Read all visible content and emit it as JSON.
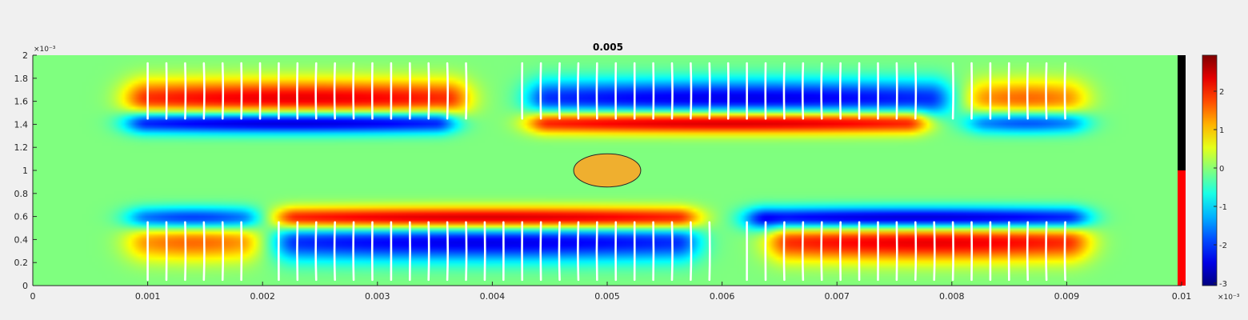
{
  "chart_data": {
    "type": "heatmap",
    "title": "0.005",
    "xlabel": "",
    "ylabel": "",
    "xlim": [
      0,
      0.01
    ],
    "ylim": [
      0,
      0.002
    ],
    "x_ticks": [
      0,
      0.001,
      0.002,
      0.003,
      0.004,
      0.005,
      0.006,
      0.007,
      0.008,
      0.009,
      0.01
    ],
    "x_tick_labels": [
      "0",
      "0.001",
      "0.002",
      "0.003",
      "0.004",
      "0.005",
      "0.006",
      "0.007",
      "0.008",
      "0.009",
      "0.01"
    ],
    "y_tick_labels": [
      "0",
      "0.2",
      "0.4",
      "0.6",
      "0.8",
      "1",
      "1.2",
      "1.4",
      "1.6",
      "1.8",
      "2"
    ],
    "y_exponent_label": "×10⁻³",
    "colorbar": {
      "colormap": "jet",
      "range": [
        -3,
        3
      ],
      "tick_labels": [
        "-3",
        "-2",
        "-1",
        "0",
        "1",
        "2"
      ],
      "exponent_label": "×10⁻³"
    },
    "lobes": [
      {
        "x0": 0.001,
        "x1": 0.0036,
        "yc": 0.00162,
        "amp": 0.8,
        "wid": 0.00012
      },
      {
        "x0": 0.001,
        "x1": 0.0035,
        "yc": 0.00142,
        "amp": -1.0,
        "wid": 7e-05
      },
      {
        "x0": 0.0045,
        "x1": 0.0078,
        "yc": 0.00162,
        "amp": -0.8,
        "wid": 0.00012
      },
      {
        "x0": 0.0045,
        "x1": 0.0076,
        "yc": 0.00142,
        "amp": 1.0,
        "wid": 7e-05
      },
      {
        "x0": 0.0083,
        "x1": 0.009,
        "yc": 0.00162,
        "amp": 0.55,
        "wid": 0.00012
      },
      {
        "x0": 0.0083,
        "x1": 0.009,
        "yc": 0.00142,
        "amp": -0.7,
        "wid": 7e-05
      },
      {
        "x0": 0.001,
        "x1": 0.0018,
        "yc": 0.00058,
        "amp": -0.75,
        "wid": 7e-05
      },
      {
        "x0": 0.001,
        "x1": 0.0018,
        "yc": 0.00038,
        "amp": 0.55,
        "wid": 0.00012
      },
      {
        "x0": 0.0023,
        "x1": 0.0056,
        "yc": 0.00058,
        "amp": 1.0,
        "wid": 7e-05
      },
      {
        "x0": 0.0023,
        "x1": 0.0056,
        "yc": 0.00038,
        "amp": -0.8,
        "wid": 0.00012
      },
      {
        "x0": 0.0064,
        "x1": 0.009,
        "yc": 0.00058,
        "amp": -1.0,
        "wid": 7e-05
      },
      {
        "x0": 0.0066,
        "x1": 0.009,
        "yc": 0.00038,
        "amp": 0.8,
        "wid": 0.00012
      }
    ],
    "line_groups": [
      {
        "y0": 0.00145,
        "y1": 0.00193,
        "x_start": 0.001,
        "x_end": 0.009,
        "step": 0.000163,
        "gaps": [
          [
            0.0039,
            0.0041
          ],
          [
            0.0078,
            0.008
          ]
        ]
      },
      {
        "y0": 5e-05,
        "y1": 0.00055,
        "x_start": 0.001,
        "x_end": 0.009,
        "step": 0.000163,
        "gaps": [
          [
            0.0019,
            0.0021
          ],
          [
            0.006,
            0.0062
          ]
        ]
      }
    ],
    "obstacle": {
      "cx": 0.005,
      "cy": 0.001,
      "rx": 0.0002,
      "ry": 0.00024,
      "color": "#efaf2f"
    },
    "side_bar": {
      "top_color": "#000000",
      "bottom_color": "#ff0000",
      "split_y": 0.001
    }
  }
}
